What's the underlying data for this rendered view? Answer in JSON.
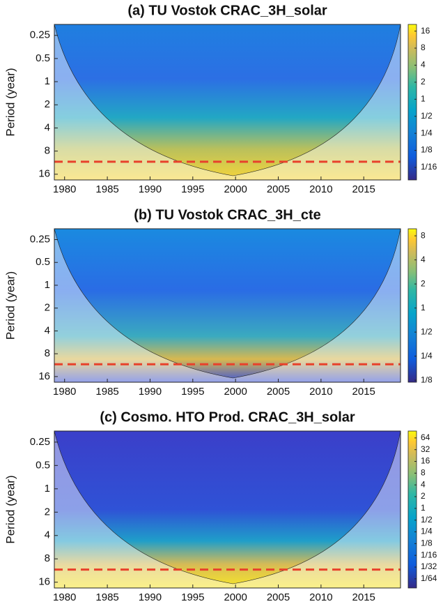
{
  "chart_data": [
    {
      "type": "heatmap",
      "title": "(a) TU Vostok CRAC_3H_solar",
      "ylabel": "Period (year)",
      "xlim": [
        1978.8,
        2019.3
      ],
      "xticks": [
        1980,
        1985,
        1990,
        1995,
        2000,
        2005,
        2010,
        2015
      ],
      "ylim": [
        0.18,
        19
      ],
      "yticks": [
        0.25,
        0.5,
        1,
        2,
        4,
        8,
        16
      ],
      "y_reversed": true,
      "y_log": true,
      "clim": [
        0.0375,
        21
      ],
      "c_log": true,
      "cticks": [
        16,
        8,
        4,
        2,
        1,
        {
          "value": 0.5,
          "label": "1/2"
        },
        {
          "value": 0.25,
          "label": "1/4"
        },
        {
          "value": 0.125,
          "label": "1/8"
        },
        {
          "value": 0.0625,
          "label": "1/16"
        }
      ],
      "hline": 11,
      "hline_color": "#e8412b"
    },
    {
      "type": "heatmap",
      "title": "(b) TU Vostok CRAC_3H_cte",
      "ylabel": "Period (year)",
      "xlim": [
        1978.8,
        2019.3
      ],
      "xticks": [
        1980,
        1985,
        1990,
        1995,
        2000,
        2005,
        2010,
        2015
      ],
      "ylim": [
        0.18,
        19
      ],
      "yticks": [
        0.25,
        0.5,
        1,
        2,
        4,
        8,
        16
      ],
      "y_reversed": true,
      "y_log": true,
      "clim": [
        0.118,
        9.8
      ],
      "c_log": true,
      "cticks": [
        8,
        4,
        2,
        1,
        {
          "value": 0.5,
          "label": "1/2"
        },
        {
          "value": 0.25,
          "label": "1/4"
        },
        {
          "value": 0.125,
          "label": "1/8"
        }
      ],
      "hline": 11,
      "hline_color": "#e8412b"
    },
    {
      "type": "heatmap",
      "title": "(c) Cosmo. HTO Prod. CRAC_3H_solar",
      "ylabel": "Period (year)",
      "xlim": [
        1978.8,
        2019.3
      ],
      "xticks": [
        1980,
        1985,
        1990,
        1995,
        2000,
        2005,
        2010,
        2015
      ],
      "ylim": [
        0.18,
        19
      ],
      "yticks": [
        0.25,
        0.5,
        1,
        2,
        4,
        8,
        16
      ],
      "y_reversed": true,
      "y_log": true,
      "clim": [
        0.0091,
        96
      ],
      "c_log": true,
      "cticks": [
        64,
        32,
        16,
        8,
        4,
        2,
        1,
        {
          "value": 0.5,
          "label": "1/2"
        },
        {
          "value": 0.25,
          "label": "1/4"
        },
        {
          "value": 0.125,
          "label": "1/8"
        },
        {
          "value": 0.0625,
          "label": "1/16"
        },
        {
          "value": 0.03125,
          "label": "1/32"
        },
        {
          "value": 0.015625,
          "label": "1/64"
        }
      ],
      "hline": 11,
      "hline_color": "#e8412b"
    }
  ]
}
